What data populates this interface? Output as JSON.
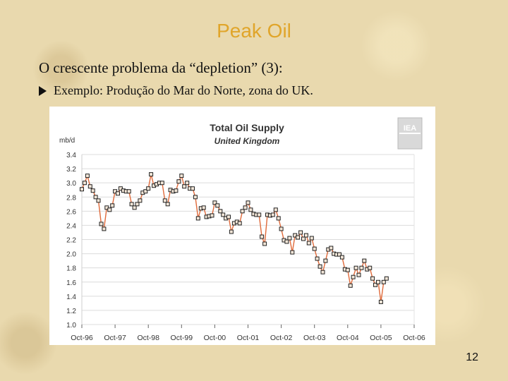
{
  "slide": {
    "title": "Peak Oil",
    "heading": "O crescente problema da “depletion” (3):",
    "bullet": "Exemplo: Produção do Mar do Norte, zona do UK.",
    "page_number": "12"
  },
  "chart_data": {
    "type": "line",
    "title": "Total Oil Supply",
    "subtitle": "United Kingdom",
    "ylabel": "mb/d",
    "xlabel": "",
    "ylim": [
      1.0,
      3.4
    ],
    "yticks": [
      "3.4",
      "3.2",
      "3.0",
      "2.8",
      "2.6",
      "2.4",
      "2.2",
      "2.0",
      "1.8",
      "1.6",
      "1.4",
      "1.2",
      "1.0"
    ],
    "xticks": [
      "Oct-96",
      "Oct-97",
      "Oct-98",
      "Oct-99",
      "Oct-00",
      "Oct-01",
      "Oct-02",
      "Oct-03",
      "Oct-04",
      "Oct-05",
      "Oct-06"
    ],
    "logo_text": "IEA",
    "line_color": "#e06a3a",
    "marker_color": "#222222",
    "x_start": "Oct-96",
    "series": [
      {
        "name": "United Kingdom",
        "values": [
          2.91,
          3.0,
          3.1,
          2.95,
          2.89,
          2.8,
          2.75,
          2.42,
          2.35,
          2.65,
          2.62,
          2.68,
          2.88,
          2.85,
          2.92,
          2.89,
          2.88,
          2.88,
          2.7,
          2.65,
          2.7,
          2.75,
          2.86,
          2.88,
          2.92,
          3.12,
          2.96,
          2.98,
          3.0,
          3.0,
          2.75,
          2.7,
          2.9,
          2.88,
          2.89,
          3.02,
          3.1,
          2.95,
          3.0,
          2.92,
          2.92,
          2.8,
          2.5,
          2.64,
          2.65,
          2.52,
          2.53,
          2.54,
          2.72,
          2.68,
          2.6,
          2.55,
          2.5,
          2.52,
          2.31,
          2.43,
          2.45,
          2.43,
          2.6,
          2.65,
          2.72,
          2.62,
          2.56,
          2.55,
          2.55,
          2.24,
          2.14,
          2.55,
          2.54,
          2.55,
          2.62,
          2.5,
          2.35,
          2.19,
          2.17,
          2.22,
          2.02,
          2.26,
          2.23,
          2.3,
          2.21,
          2.26,
          2.15,
          2.22,
          2.07,
          1.93,
          1.82,
          1.74,
          1.9,
          2.06,
          2.08,
          2.0,
          1.99,
          1.99,
          1.95,
          1.78,
          1.77,
          1.55,
          1.67,
          1.8,
          1.7,
          1.8,
          1.9,
          1.78,
          1.8,
          1.65,
          1.56,
          1.6,
          1.32,
          1.6,
          1.65
        ]
      }
    ]
  }
}
